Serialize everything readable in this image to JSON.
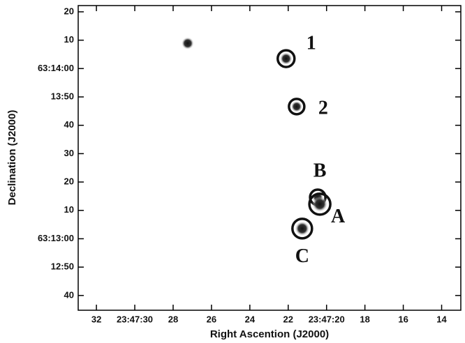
{
  "chart_data": {
    "type": "scatter",
    "xlabel": "Right Ascention (J2000)",
    "ylabel": "Declination (J2000)",
    "xlim": [
      32.95,
      13.0
    ],
    "ylim": [
      34.8,
      142.2
    ],
    "xticks": [
      32,
      {
        "value": 30,
        "label": "23:47:30"
      },
      28,
      26,
      24,
      22,
      {
        "value": 20,
        "label": "23:47:20"
      },
      18,
      16,
      14
    ],
    "yticks": [
      40,
      {
        "value": 50,
        "label": "12:50"
      },
      {
        "value": 60,
        "label": "63:13:00"
      },
      {
        "value": 70,
        "label": "10"
      },
      {
        "value": 80,
        "label": "20"
      },
      {
        "value": 90,
        "label": "30"
      },
      {
        "value": 100,
        "label": "40"
      },
      {
        "value": 110,
        "label": "13:50"
      },
      {
        "value": 120,
        "label": "63:14:00"
      },
      {
        "value": 130,
        "label": "10"
      },
      {
        "value": 140,
        "label": "20"
      }
    ],
    "x": [
      22.11,
      21.56,
      20.46,
      20.35,
      21.27,
      27.24
    ],
    "y": [
      123.5,
      106.6,
      74.6,
      72.2,
      63.6,
      128.9
    ],
    "labels": [
      "1",
      "2",
      "B",
      "A",
      "C",
      null
    ],
    "color": "#111111"
  }
}
